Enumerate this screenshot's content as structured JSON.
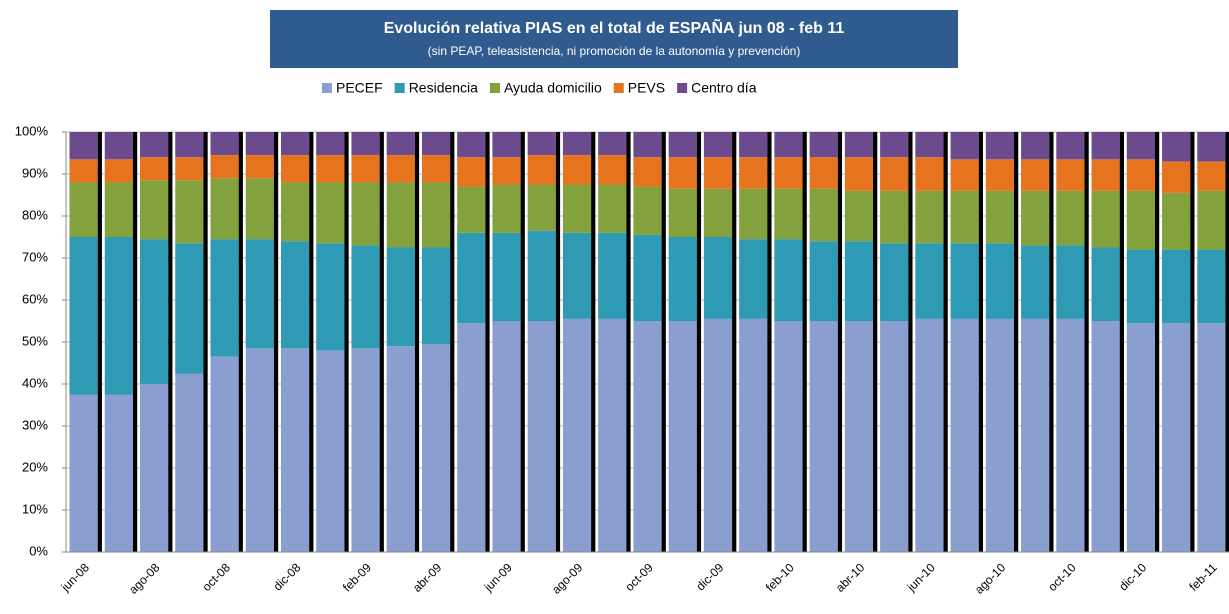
{
  "chart_data": {
    "type": "stacked_bar",
    "title": "Evolución relativa PIAS en el total de ESPAÑA jun 08 - feb 11",
    "subtitle": "(sin PEAP, teleasistencia, ni promoción de la autonomía y prevención)",
    "categories": [
      "jun-08",
      null,
      "ago-08",
      null,
      "oct-08",
      null,
      "dic-08",
      null,
      "feb-09",
      null,
      "abr-09",
      null,
      "jun-09",
      null,
      "ago-09",
      null,
      "oct-09",
      null,
      "dic-09",
      null,
      "feb-10",
      null,
      "abr-10",
      null,
      "jun-10",
      null,
      "ago-10",
      null,
      "oct-10",
      null,
      "dic-10",
      null,
      "feb-11"
    ],
    "series": [
      {
        "name": "PECEF",
        "color": "#8a9fcf",
        "values": [
          37.5,
          37.5,
          40,
          42.5,
          46.5,
          48.5,
          48.5,
          48,
          48.5,
          49,
          49.5,
          54.5,
          55,
          55,
          55.5,
          55.5,
          55,
          55,
          55.5,
          55.5,
          55,
          55,
          55,
          55,
          55.5,
          55.5,
          55.5,
          55.5,
          55.5,
          55,
          54.5,
          54.5,
          54.5
        ]
      },
      {
        "name": "Residencia",
        "color": "#2e9ab4",
        "values": [
          37.5,
          37.5,
          34.5,
          31,
          28,
          26,
          25.5,
          25.5,
          24.5,
          23.5,
          23,
          21.5,
          21,
          21.5,
          20.5,
          20.5,
          20.5,
          20,
          19.5,
          19,
          19.5,
          19,
          19,
          18.5,
          18,
          18,
          18,
          17.5,
          17.5,
          17.5,
          17.5,
          17.5,
          17.5
        ]
      },
      {
        "name": "Ayuda domicilio",
        "color": "#83a23d",
        "values": [
          13,
          13,
          14,
          15,
          14.5,
          14.5,
          14,
          14.5,
          15,
          15.5,
          15.5,
          11,
          11.5,
          11,
          11.5,
          11.5,
          11.5,
          11.5,
          11.5,
          12,
          12,
          12.5,
          12,
          12.5,
          12.5,
          12.5,
          12.5,
          13,
          13,
          13.5,
          14,
          13.5,
          14
        ]
      },
      {
        "name": "PEVS",
        "color": "#e6731e",
        "values": [
          5.5,
          5.5,
          5.5,
          5.5,
          5.5,
          5.5,
          6.5,
          6.5,
          6.5,
          6.5,
          6.5,
          7,
          6.5,
          7,
          7,
          7,
          7,
          7.5,
          7.5,
          7.5,
          7.5,
          7.5,
          8,
          8,
          8,
          7.5,
          7.5,
          7.5,
          7.5,
          7.5,
          7.5,
          7.5,
          7
        ]
      },
      {
        "name": "Centro día",
        "color": "#6b4a8e",
        "values": [
          6.5,
          6.5,
          6,
          6,
          5.5,
          5.5,
          5.5,
          5.5,
          5.5,
          5.5,
          5.5,
          6,
          6,
          5.5,
          5.5,
          5.5,
          6,
          6,
          6,
          6,
          6,
          6,
          6,
          6,
          6,
          6.5,
          6.5,
          6.5,
          6.5,
          6.5,
          6.5,
          7,
          7
        ]
      }
    ],
    "ylim": [
      0,
      100
    ],
    "yticks": [
      {
        "value": 0,
        "label": "0%"
      },
      {
        "value": 10,
        "label": "10%"
      },
      {
        "value": 20,
        "label": "20%"
      },
      {
        "value": 30,
        "label": "30%"
      },
      {
        "value": 40,
        "label": "40%"
      },
      {
        "value": 50,
        "label": "50%"
      },
      {
        "value": 60,
        "label": "60%"
      },
      {
        "value": 70,
        "label": "70%"
      },
      {
        "value": 80,
        "label": "80%"
      },
      {
        "value": 90,
        "label": "90%"
      },
      {
        "value": 100,
        "label": "100%"
      }
    ],
    "grid": true
  }
}
